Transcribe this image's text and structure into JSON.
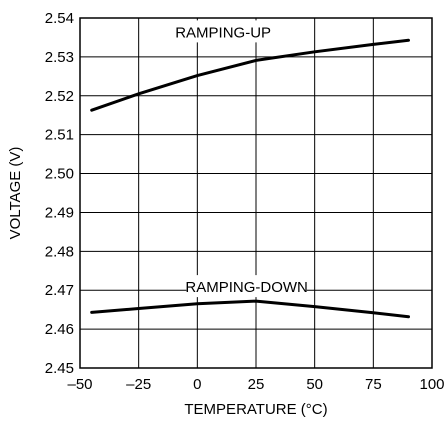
{
  "chart_data": {
    "type": "line",
    "title": "",
    "xlabel": "TEMPERATURE (°C)",
    "ylabel": "VOLTAGE (V)",
    "xlim": [
      -50,
      100
    ],
    "ylim": [
      2.45,
      2.54
    ],
    "grid": true,
    "x_ticks": [
      -50,
      -25,
      0,
      25,
      50,
      75,
      100
    ],
    "x_tick_labels": [
      "–50",
      "–25",
      "0",
      "25",
      "50",
      "75",
      "100"
    ],
    "y_ticks": [
      2.45,
      2.46,
      2.47,
      2.48,
      2.49,
      2.5,
      2.51,
      2.52,
      2.53,
      2.54
    ],
    "y_tick_labels": [
      "2.45",
      "2.46",
      "2.47",
      "2.48",
      "2.49",
      "2.50",
      "2.51",
      "2.52",
      "2.53",
      "2.54"
    ],
    "series": [
      {
        "name": "RAMPING-UP",
        "x": [
          -45,
          -25,
          0,
          25,
          50,
          75,
          90
        ],
        "y": [
          2.5163,
          2.5205,
          2.5252,
          2.5291,
          2.5313,
          2.5332,
          2.5343
        ]
      },
      {
        "name": "RAMPING-DOWN",
        "x": [
          -45,
          -25,
          0,
          25,
          50,
          75,
          90
        ],
        "y": [
          2.4643,
          2.4653,
          2.4665,
          2.4672,
          2.4658,
          2.4642,
          2.4632
        ]
      }
    ],
    "annotations": [
      {
        "text": "RAMPING-UP",
        "x": 11,
        "y": 2.5363
      },
      {
        "text": "RAMPING-DOWN",
        "x": 21,
        "y": 2.4708
      }
    ]
  }
}
